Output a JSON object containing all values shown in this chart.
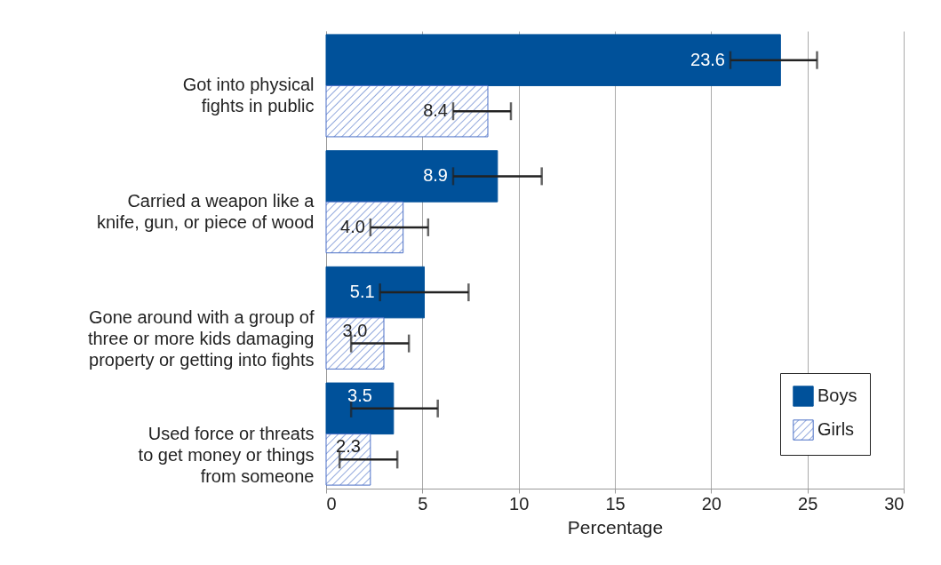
{
  "chart_data": {
    "type": "bar",
    "orientation": "horizontal",
    "xlabel": "Percentage",
    "categories": [
      "Got into physical\nfights in public",
      "Carried a weapon like a\nknife, gun, or piece of wood",
      "Gone around with a group of\nthree or more kids damaging\nproperty or getting into fights",
      "Used force or threats\nto get money or things\nfrom someone"
    ],
    "series": [
      {
        "name": "Boys",
        "color": "#00519a",
        "values": [
          23.6,
          8.9,
          5.1,
          3.5
        ],
        "errors": [
          [
            21.0,
            25.5
          ],
          [
            6.6,
            11.2
          ],
          [
            2.8,
            7.4
          ],
          [
            1.3,
            5.8
          ]
        ],
        "value_labels": [
          "23.6",
          "8.9",
          "5.1",
          "3.5"
        ]
      },
      {
        "name": "Girls",
        "color": "#4a6fc7",
        "values": [
          8.4,
          4.0,
          3.0,
          2.3
        ],
        "errors": [
          [
            6.6,
            9.6
          ],
          [
            2.3,
            5.3
          ],
          [
            1.3,
            4.3
          ],
          [
            0.7,
            3.7
          ]
        ],
        "value_labels": [
          "8.4",
          "4.0",
          "3.0",
          "2.3"
        ]
      }
    ],
    "xlim": [
      0,
      30
    ],
    "xticks": [
      0,
      5,
      10,
      15,
      20,
      25,
      30
    ],
    "grid": "x",
    "legend": "bottom right"
  }
}
